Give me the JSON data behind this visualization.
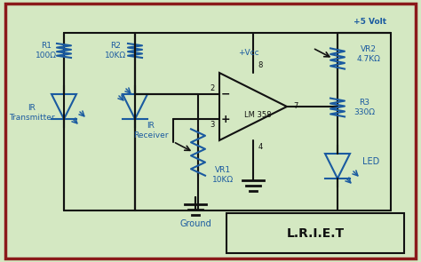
{
  "bg_color": "#d4e8c2",
  "border_color": "#8B1A1A",
  "line_color": "#1a3a8a",
  "component_color": "#1a5aa0",
  "text_color": "#1a5aa0",
  "dark_line": "#111111",
  "title": "L.R.I.E.T",
  "labels": {
    "R1": "R1\n100Ω",
    "R2": "R2\n10KΩ",
    "R3": "R3\n330Ω",
    "VR1": "VR1\n10KΩ",
    "VR2": "VR2\n4.7KΩ",
    "IR_T": "IR\nTransmitter",
    "IR_R": "IR\nReceiver",
    "LED": "LED",
    "Ground": "Ground",
    "Vcc": "+Vcc",
    "V5": "+5 Volt",
    "LM358": "LM 358",
    "pin2": "2",
    "pin3": "3",
    "pin4": "4",
    "pin7": "7",
    "pin8": "8"
  }
}
